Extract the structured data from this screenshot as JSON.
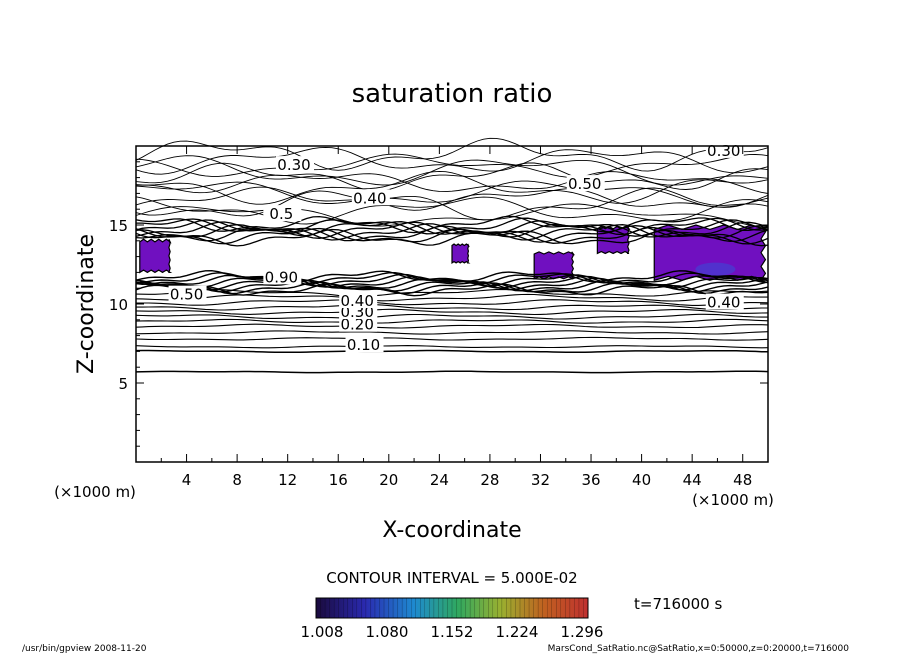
{
  "chart_data": {
    "type": "contour",
    "title": "saturation ratio",
    "xlabel": "X-coordinate",
    "ylabel": "Z-coordinate",
    "x_unit": "(×1000 m)",
    "z_unit": "(×1000 m)",
    "xlim": [
      0,
      50
    ],
    "ylim": [
      0,
      20
    ],
    "x_ticks": [
      "4",
      "8",
      "12",
      "16",
      "20",
      "24",
      "28",
      "32",
      "36",
      "40",
      "44",
      "48"
    ],
    "y_ticks": [
      "5",
      "10",
      "15"
    ],
    "grid": false,
    "contour_interval": 0.05,
    "contour_interval_label": "CONTOUR INTERVAL = 5.000E-02",
    "contour_labels": [
      {
        "text": "0.10",
        "x": 18,
        "z": 7.2
      },
      {
        "text": "0.20",
        "x": 17.5,
        "z": 8.5
      },
      {
        "text": "0.30",
        "x": 17.5,
        "z": 9.3
      },
      {
        "text": "0.40",
        "x": 17.5,
        "z": 10.0
      },
      {
        "text": "0.50",
        "x": 4,
        "z": 10.4
      },
      {
        "text": "0.90",
        "x": 11.5,
        "z": 11.5
      },
      {
        "text": "0.40",
        "x": 46.5,
        "z": 9.9
      },
      {
        "text": "0.30",
        "x": 12.5,
        "z": 18.6
      },
      {
        "text": "0.40",
        "x": 18.5,
        "z": 16.5
      },
      {
        "text": "0.50",
        "x": 35.5,
        "z": 17.4
      },
      {
        "text": "0.30",
        "x": 46.5,
        "z": 19.5
      },
      {
        "text": "0.5",
        "x": 11.5,
        "z": 15.5
      }
    ],
    "shaded_regions": [
      {
        "x": [
          0.3,
          2.7
        ],
        "z": [
          12.0,
          14.1
        ]
      },
      {
        "x": [
          25.0,
          26.3
        ],
        "z": [
          12.6,
          13.8
        ]
      },
      {
        "x": [
          31.5,
          34.6
        ],
        "z": [
          11.6,
          13.3
        ]
      },
      {
        "x": [
          36.5,
          39.0
        ],
        "z": [
          13.2,
          14.9
        ]
      },
      {
        "x": [
          41.0,
          49.8
        ],
        "z": [
          11.5,
          15.0
        ]
      }
    ],
    "colorbar": {
      "ticks": [
        "1.008",
        "1.080",
        "1.152",
        "1.224",
        "1.296"
      ],
      "colors": [
        "#1a0a3c",
        "#2a2ab0",
        "#1e8ad0",
        "#2fa860",
        "#9ab030",
        "#c06020",
        "#c03030"
      ]
    },
    "time_label": "t=716000 s"
  },
  "footer": {
    "left": "/usr/bin/gpview   2008-11-20",
    "right": "MarsCond_SatRatio.nc@SatRatio,x=0:50000,z=0:20000,t=716000"
  }
}
